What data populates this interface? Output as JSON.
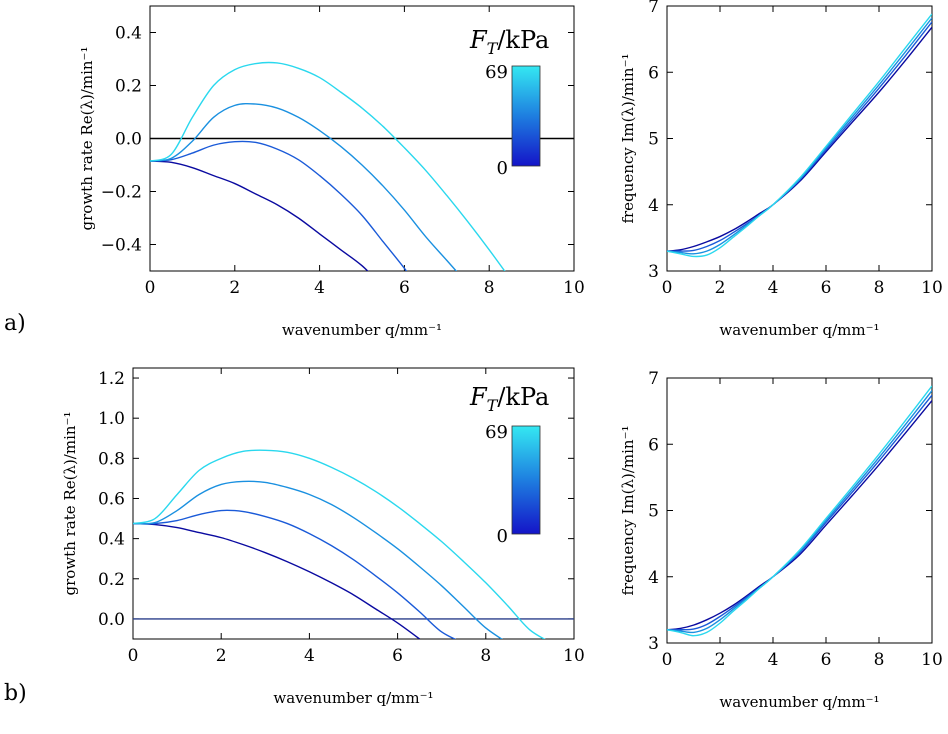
{
  "panels": [
    {
      "label": "a)"
    },
    {
      "label": "b)"
    }
  ],
  "colorbar": {
    "title_main": "F",
    "title_sub": "T",
    "title_unit": "/kPa",
    "max_label": "69",
    "min_label": "0"
  },
  "series_colors": [
    "#0a0aa0",
    "#1a5ad8",
    "#1a90e0",
    "#2ad8ee"
  ],
  "chart_data": [
    {
      "id": "a-growth",
      "type": "line",
      "xlabel": "wavenumber q/mm⁻¹",
      "ylabel": "growth rate Re(λ)/min⁻¹",
      "xlim": [
        0,
        10
      ],
      "ylim": [
        -0.5,
        0.5
      ],
      "xticks": [
        0,
        2,
        4,
        6,
        8,
        10
      ],
      "yticks": [
        -0.4,
        -0.2,
        0.0,
        0.2,
        0.4
      ],
      "ytick_labels": [
        "−0.4",
        "−0.2",
        "0.0",
        "0.2",
        "0.4"
      ],
      "hline": {
        "y": 0.0,
        "color": "#000000"
      },
      "x": [
        0,
        0.5,
        1,
        1.5,
        2,
        2.5,
        3,
        3.5,
        4,
        4.5,
        5,
        5.5,
        6,
        6.5,
        7,
        7.5,
        8,
        8.5
      ],
      "series": [
        {
          "color": "#0a0aa0",
          "values": [
            -0.085,
            -0.09,
            -0.11,
            -0.14,
            -0.17,
            -0.21,
            -0.25,
            -0.3,
            -0.36,
            -0.42,
            -0.48,
            -0.56,
            null,
            null,
            null,
            null,
            null,
            null
          ]
        },
        {
          "color": "#1a5ad8",
          "values": [
            -0.085,
            -0.08,
            -0.055,
            -0.025,
            -0.012,
            -0.015,
            -0.04,
            -0.08,
            -0.14,
            -0.21,
            -0.29,
            -0.39,
            -0.49,
            -0.6,
            null,
            null,
            null,
            null
          ]
        },
        {
          "color": "#1a90e0",
          "values": [
            -0.085,
            -0.075,
            -0.01,
            0.08,
            0.125,
            0.13,
            0.115,
            0.08,
            0.03,
            -0.03,
            -0.1,
            -0.18,
            -0.27,
            -0.37,
            -0.46,
            -0.55,
            null,
            null
          ]
        },
        {
          "color": "#2ad8ee",
          "values": [
            -0.085,
            -0.06,
            0.08,
            0.2,
            0.26,
            0.283,
            0.285,
            0.265,
            0.23,
            0.175,
            0.115,
            0.045,
            -0.035,
            -0.12,
            -0.215,
            -0.315,
            -0.42,
            -0.53
          ]
        }
      ]
    },
    {
      "id": "a-frequency",
      "type": "line",
      "xlabel": "wavenumber q/mm⁻¹",
      "ylabel": "frequency Im(λ)/min⁻¹",
      "xlim": [
        0,
        10
      ],
      "ylim": [
        3,
        7
      ],
      "xticks": [
        0,
        2,
        4,
        6,
        8,
        10
      ],
      "yticks": [
        3,
        4,
        5,
        6,
        7
      ],
      "ytick_labels": [
        "3",
        "4",
        "5",
        "6",
        "7"
      ],
      "x": [
        0,
        0.5,
        1,
        1.5,
        2,
        2.5,
        3,
        3.5,
        4,
        5,
        6,
        7,
        8,
        9,
        10
      ],
      "series": [
        {
          "color": "#0a0aa0",
          "values": [
            3.3,
            3.32,
            3.37,
            3.44,
            3.52,
            3.62,
            3.74,
            3.87,
            4.0,
            4.35,
            4.8,
            5.25,
            5.7,
            6.18,
            6.68
          ]
        },
        {
          "color": "#1a5ad8",
          "values": [
            3.3,
            3.3,
            3.31,
            3.37,
            3.46,
            3.58,
            3.71,
            3.85,
            4.0,
            4.37,
            4.83,
            5.29,
            5.76,
            6.25,
            6.76
          ]
        },
        {
          "color": "#1a90e0",
          "values": [
            3.3,
            3.28,
            3.26,
            3.3,
            3.4,
            3.54,
            3.69,
            3.84,
            4.0,
            4.38,
            4.86,
            5.33,
            5.81,
            6.31,
            6.82
          ]
        },
        {
          "color": "#2ad8ee",
          "values": [
            3.3,
            3.26,
            3.22,
            3.24,
            3.35,
            3.51,
            3.67,
            3.84,
            4.0,
            4.4,
            4.88,
            5.37,
            5.86,
            6.37,
            6.88
          ]
        }
      ]
    },
    {
      "id": "b-growth",
      "type": "line",
      "xlabel": "wavenumber q/mm⁻¹",
      "ylabel": "growth rate Re(λ)/min⁻¹",
      "xlim": [
        0,
        10
      ],
      "ylim": [
        -0.1,
        1.25
      ],
      "xticks": [
        0,
        2,
        4,
        6,
        8,
        10
      ],
      "yticks": [
        0.0,
        0.2,
        0.4,
        0.6,
        0.8,
        1.0,
        1.2
      ],
      "ytick_labels": [
        "0.0",
        "0.2",
        "0.4",
        "0.6",
        "0.8",
        "1.0",
        "1.2"
      ],
      "hline": {
        "y": 0.0,
        "color": "#2a3f8a"
      },
      "x": [
        0,
        0.5,
        1,
        1.5,
        2,
        2.5,
        3,
        3.5,
        4,
        4.5,
        5,
        5.5,
        6,
        6.5,
        7,
        7.5,
        8,
        8.5,
        9,
        9.5
      ],
      "series": [
        {
          "color": "#0a0aa0",
          "values": [
            0.475,
            0.47,
            0.455,
            0.43,
            0.405,
            0.37,
            0.33,
            0.285,
            0.235,
            0.18,
            0.12,
            0.05,
            -0.02,
            -0.1,
            null,
            null,
            null,
            null,
            null,
            null
          ]
        },
        {
          "color": "#1a5ad8",
          "values": [
            0.475,
            0.475,
            0.49,
            0.52,
            0.54,
            0.535,
            0.51,
            0.475,
            0.425,
            0.365,
            0.295,
            0.215,
            0.13,
            0.035,
            -0.065,
            -0.12,
            null,
            null,
            null,
            null
          ]
        },
        {
          "color": "#1a90e0",
          "values": [
            0.475,
            0.48,
            0.54,
            0.62,
            0.67,
            0.685,
            0.68,
            0.655,
            0.62,
            0.57,
            0.505,
            0.43,
            0.35,
            0.26,
            0.165,
            0.06,
            -0.045,
            -0.12,
            null,
            null
          ]
        },
        {
          "color": "#2ad8ee",
          "values": [
            0.475,
            0.5,
            0.62,
            0.74,
            0.8,
            0.835,
            0.84,
            0.83,
            0.8,
            0.755,
            0.7,
            0.635,
            0.56,
            0.475,
            0.385,
            0.285,
            0.18,
            0.065,
            -0.055,
            -0.12
          ]
        }
      ]
    },
    {
      "id": "b-frequency",
      "type": "line",
      "xlabel": "wavenumber q/mm⁻¹",
      "ylabel": "frequency Im(λ)/min⁻¹",
      "xlim": [
        0,
        10
      ],
      "ylim": [
        3,
        7
      ],
      "xticks": [
        0,
        2,
        4,
        6,
        8,
        10
      ],
      "yticks": [
        3,
        4,
        5,
        6,
        7
      ],
      "ytick_labels": [
        "3",
        "4",
        "5",
        "6",
        "7"
      ],
      "x": [
        0,
        0.5,
        1,
        1.5,
        2,
        2.5,
        3,
        3.5,
        4,
        5,
        6,
        7,
        8,
        9,
        10
      ],
      "series": [
        {
          "color": "#0a0aa0",
          "values": [
            3.2,
            3.22,
            3.27,
            3.35,
            3.45,
            3.57,
            3.71,
            3.86,
            4.0,
            4.33,
            4.78,
            5.23,
            5.69,
            6.17,
            6.66
          ]
        },
        {
          "color": "#1a5ad8",
          "values": [
            3.2,
            3.2,
            3.21,
            3.28,
            3.4,
            3.54,
            3.69,
            3.84,
            4.0,
            4.36,
            4.82,
            5.28,
            5.75,
            6.24,
            6.74
          ]
        },
        {
          "color": "#1a90e0",
          "values": [
            3.2,
            3.18,
            3.16,
            3.22,
            3.35,
            3.51,
            3.67,
            3.83,
            4.0,
            4.38,
            4.85,
            5.32,
            5.8,
            6.3,
            6.81
          ]
        },
        {
          "color": "#2ad8ee",
          "values": [
            3.2,
            3.16,
            3.11,
            3.16,
            3.3,
            3.48,
            3.65,
            3.83,
            4.0,
            4.4,
            4.88,
            5.36,
            5.85,
            6.36,
            6.88
          ]
        }
      ]
    }
  ]
}
